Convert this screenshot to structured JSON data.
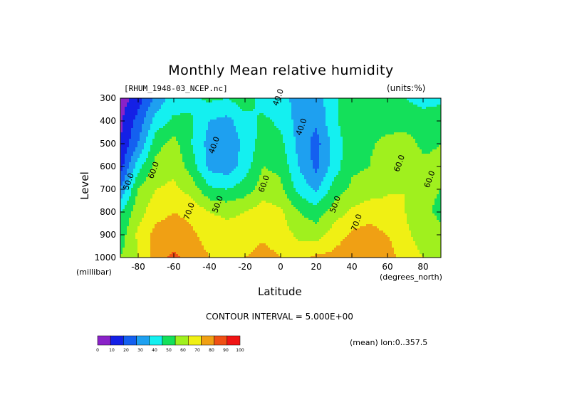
{
  "chart_data": {
    "type": "heatmap",
    "title": "Monthly Mean relative humidity",
    "dataset": "[RHUM_1948-03_NCEP.nc]",
    "units_note": "(units:%)",
    "ylabel": "Level",
    "yunit": "(millibar)",
    "xlabel": "Latitude",
    "xunit": "(degrees_north)",
    "contour_interval_text": "CONTOUR INTERVAL = 5.000E+00",
    "mean_note": "(mean) lon:0..357.5",
    "xlim": [
      -90,
      90
    ],
    "ylim": [
      1000,
      300
    ],
    "x_ticks": [
      -80,
      -60,
      -40,
      -20,
      0,
      20,
      40,
      60,
      80
    ],
    "y_ticks": [
      300,
      400,
      500,
      600,
      700,
      800,
      900,
      1000
    ],
    "x_tick_labels": [
      "-80",
      "-60",
      "-40",
      "-20",
      "0",
      "20",
      "40",
      "60",
      "80"
    ],
    "y_tick_labels": [
      "300",
      "400",
      "500",
      "600",
      "700",
      "800",
      "900",
      "1000"
    ],
    "colorbar": {
      "levels": [
        0,
        10,
        20,
        30,
        40,
        50,
        60,
        70,
        80,
        90,
        100
      ],
      "level_labels": [
        "0",
        "10",
        "20",
        "30",
        "40",
        "50",
        "60",
        "70",
        "80",
        "90",
        "100"
      ],
      "colors": [
        "#8a22c8",
        "#1420e6",
        "#1460f0",
        "#1ea0f0",
        "#14f0f0",
        "#14e05a",
        "#a0f01e",
        "#f0f014",
        "#f0a014",
        "#f05014",
        "#f01414"
      ]
    },
    "latitudes": [
      -90,
      -80,
      -70,
      -60,
      -50,
      -40,
      -30,
      -20,
      -10,
      0,
      10,
      20,
      30,
      40,
      50,
      60,
      70,
      80,
      90
    ],
    "levels_mb": [
      300,
      400,
      500,
      600,
      700,
      800,
      900,
      1000
    ],
    "values": [
      [
        5,
        15,
        33,
        45,
        48,
        52,
        50,
        56,
        46,
        44,
        36,
        34,
        48,
        56,
        55,
        53,
        50,
        46,
        48
      ],
      [
        8,
        24,
        44,
        52,
        51,
        40,
        37,
        46,
        52,
        48,
        36,
        32,
        48,
        57,
        58,
        57,
        56,
        55,
        55
      ],
      [
        10,
        30,
        56,
        64,
        50,
        36,
        34,
        42,
        55,
        53,
        37,
        26,
        44,
        56,
        59,
        62,
        64,
        58,
        60
      ],
      [
        15,
        46,
        64,
        68,
        55,
        37,
        34,
        45,
        60,
        58,
        40,
        27,
        45,
        58,
        60,
        66,
        68,
        62,
        62
      ],
      [
        30,
        61,
        70,
        72,
        66,
        52,
        50,
        55,
        65,
        62,
        47,
        38,
        54,
        62,
        65,
        69,
        70,
        62,
        60
      ],
      [
        50,
        66,
        76,
        80,
        77,
        70,
        68,
        70,
        75,
        72,
        60,
        55,
        65,
        72,
        76,
        73,
        70,
        62,
        58
      ],
      [
        55,
        72,
        84,
        86,
        82,
        76,
        74,
        75,
        78,
        75,
        68,
        65,
        75,
        82,
        84,
        80,
        72,
        66,
        62
      ],
      [
        60,
        70,
        86,
        92,
        86,
        80,
        78,
        80,
        84,
        80,
        76,
        82,
        83,
        86,
        88,
        85,
        75,
        70,
        64
      ]
    ],
    "contour_labels": [
      {
        "text": "40.0",
        "lat": -36,
        "lev": 510
      },
      {
        "text": "40.0",
        "lat": 13,
        "lev": 430
      },
      {
        "text": "50.0",
        "lat": -84,
        "lev": 670
      },
      {
        "text": "60.0",
        "lat": -70,
        "lev": 620
      },
      {
        "text": "50.0",
        "lat": -34,
        "lev": 770
      },
      {
        "text": "60.0",
        "lat": -8,
        "lev": 680
      },
      {
        "text": "70.0",
        "lat": -50,
        "lev": 800
      },
      {
        "text": "50.0",
        "lat": 32,
        "lev": 770
      },
      {
        "text": "70.0",
        "lat": 44,
        "lev": 850
      },
      {
        "text": "60.0",
        "lat": 68,
        "lev": 590
      },
      {
        "text": "60.0",
        "lat": 85,
        "lev": 660
      },
      {
        "text": "40.0",
        "lat": 0,
        "lev": 300
      }
    ]
  }
}
